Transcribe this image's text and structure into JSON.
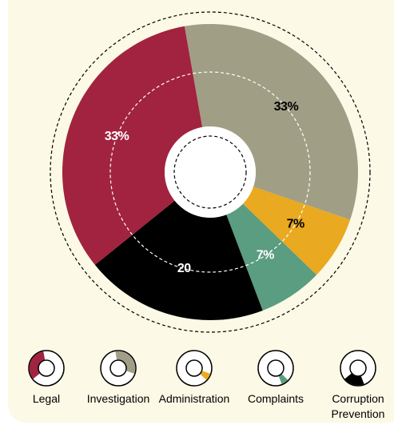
{
  "chart_data": {
    "type": "donut",
    "categories": [
      "Investigation",
      "Administration",
      "Complaints",
      "Corruption Prevention",
      "Legal"
    ],
    "values": [
      33,
      7,
      7,
      20,
      33
    ],
    "value_labels": [
      "33%",
      "7%",
      "7%",
      "20",
      "33%"
    ],
    "colors": [
      "#a09f86",
      "#e9a920",
      "#5a9d80",
      "#000000",
      "#a2233f"
    ],
    "legend_order": [
      4,
      0,
      1,
      2,
      3
    ]
  }
}
